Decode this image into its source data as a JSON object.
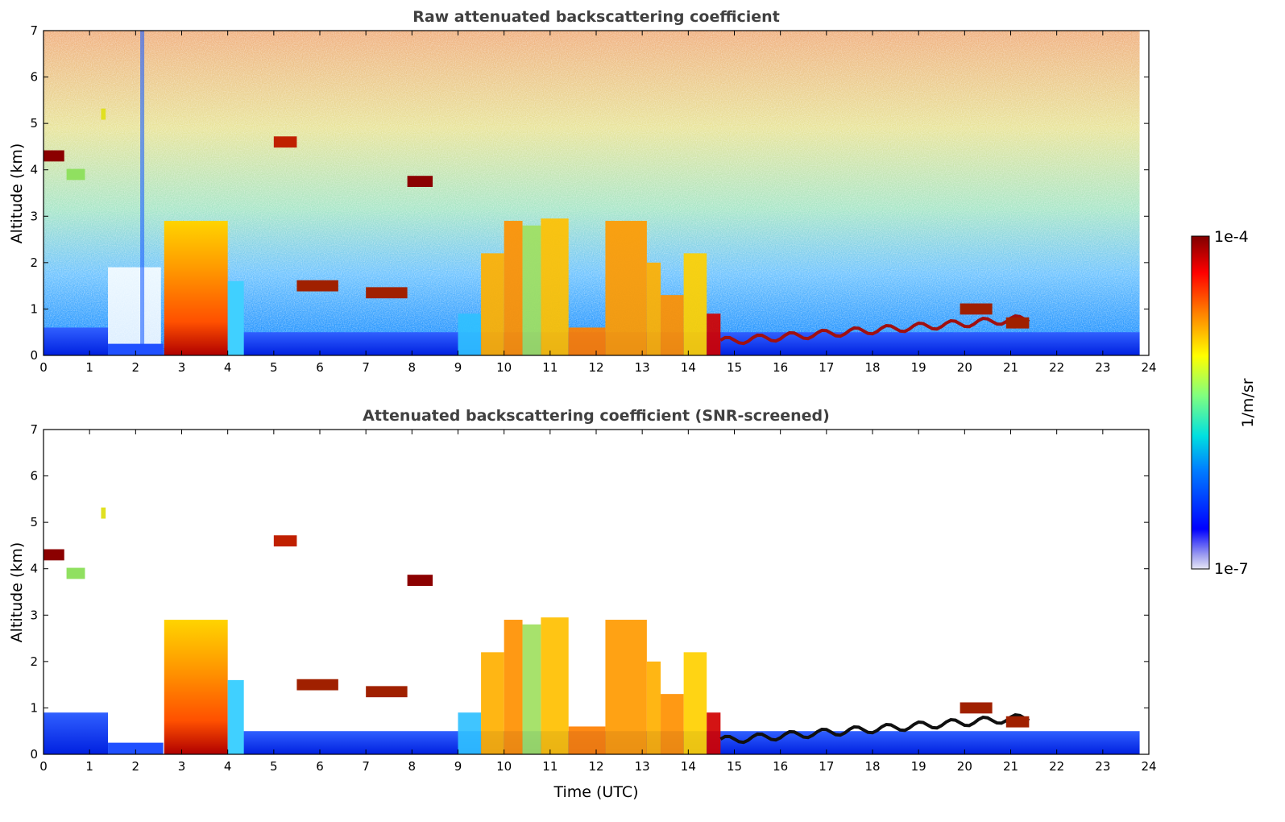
{
  "chart_data": [
    {
      "type": "heatmap",
      "title": "Raw attenuated backscattering coefficient",
      "xlabel": "",
      "ylabel": "Altitude (km)",
      "xlim": [
        0,
        24
      ],
      "ylim": [
        0,
        7
      ],
      "xticks": [
        "0",
        "1",
        "2",
        "3",
        "4",
        "5",
        "6",
        "7",
        "8",
        "9",
        "10",
        "11",
        "12",
        "13",
        "14",
        "15",
        "16",
        "17",
        "18",
        "19",
        "20",
        "21",
        "22",
        "23",
        "24"
      ],
      "yticks": [
        "0",
        "1",
        "2",
        "3",
        "4",
        "5",
        "6",
        "7"
      ],
      "data_end_time": 23.8,
      "features": [
        {
          "kind": "aerosol_layer",
          "x": [
            0,
            23.8
          ],
          "top_km": [
            0.55,
            0.6
          ]
        },
        {
          "kind": "dense_cloud",
          "x": [
            2.6,
            4.0
          ],
          "top_km": 3.0
        },
        {
          "kind": "cloud_columns",
          "x": [
            9.0,
            14.7
          ],
          "top_km": 3.0
        },
        {
          "kind": "boundary_layer_top",
          "x": [
            14.7,
            21.5
          ],
          "height_km": [
            0.3,
            0.9
          ]
        },
        {
          "kind": "elevated_layer",
          "x": [
            0.0,
            0.4
          ],
          "height_km": 4.3
        },
        {
          "kind": "elevated_layer",
          "x": [
            5.0,
            5.5
          ],
          "height_km": 4.6
        },
        {
          "kind": "elevated_layer",
          "x": [
            7.9,
            8.4
          ],
          "height_km": 3.75
        }
      ]
    },
    {
      "type": "heatmap",
      "title": "Attenuated backscattering coefficient (SNR-screened)",
      "xlabel": "Time (UTC)",
      "ylabel": "Altitude (km)",
      "xlim": [
        0,
        24
      ],
      "ylim": [
        0,
        7
      ],
      "xticks": [
        "0",
        "1",
        "2",
        "3",
        "4",
        "5",
        "6",
        "7",
        "8",
        "9",
        "10",
        "11",
        "12",
        "13",
        "14",
        "15",
        "16",
        "17",
        "18",
        "19",
        "20",
        "21",
        "22",
        "23",
        "24"
      ],
      "yticks": [
        "0",
        "1",
        "2",
        "3",
        "4",
        "5",
        "6",
        "7"
      ],
      "data_end_time": 23.8
    }
  ],
  "colorbar": {
    "label": "1/m/sr",
    "max_label": "1e-4",
    "min_label": "1e-7",
    "scale": "log",
    "range": [
      1e-07,
      0.0001
    ],
    "colormap": "jet",
    "colors": [
      "#e6e6f5",
      "#a0a0f0",
      "#0000ff",
      "#0080ff",
      "#00e0e0",
      "#80ff80",
      "#ffff00",
      "#ff8000",
      "#ff0000",
      "#800000"
    ]
  }
}
